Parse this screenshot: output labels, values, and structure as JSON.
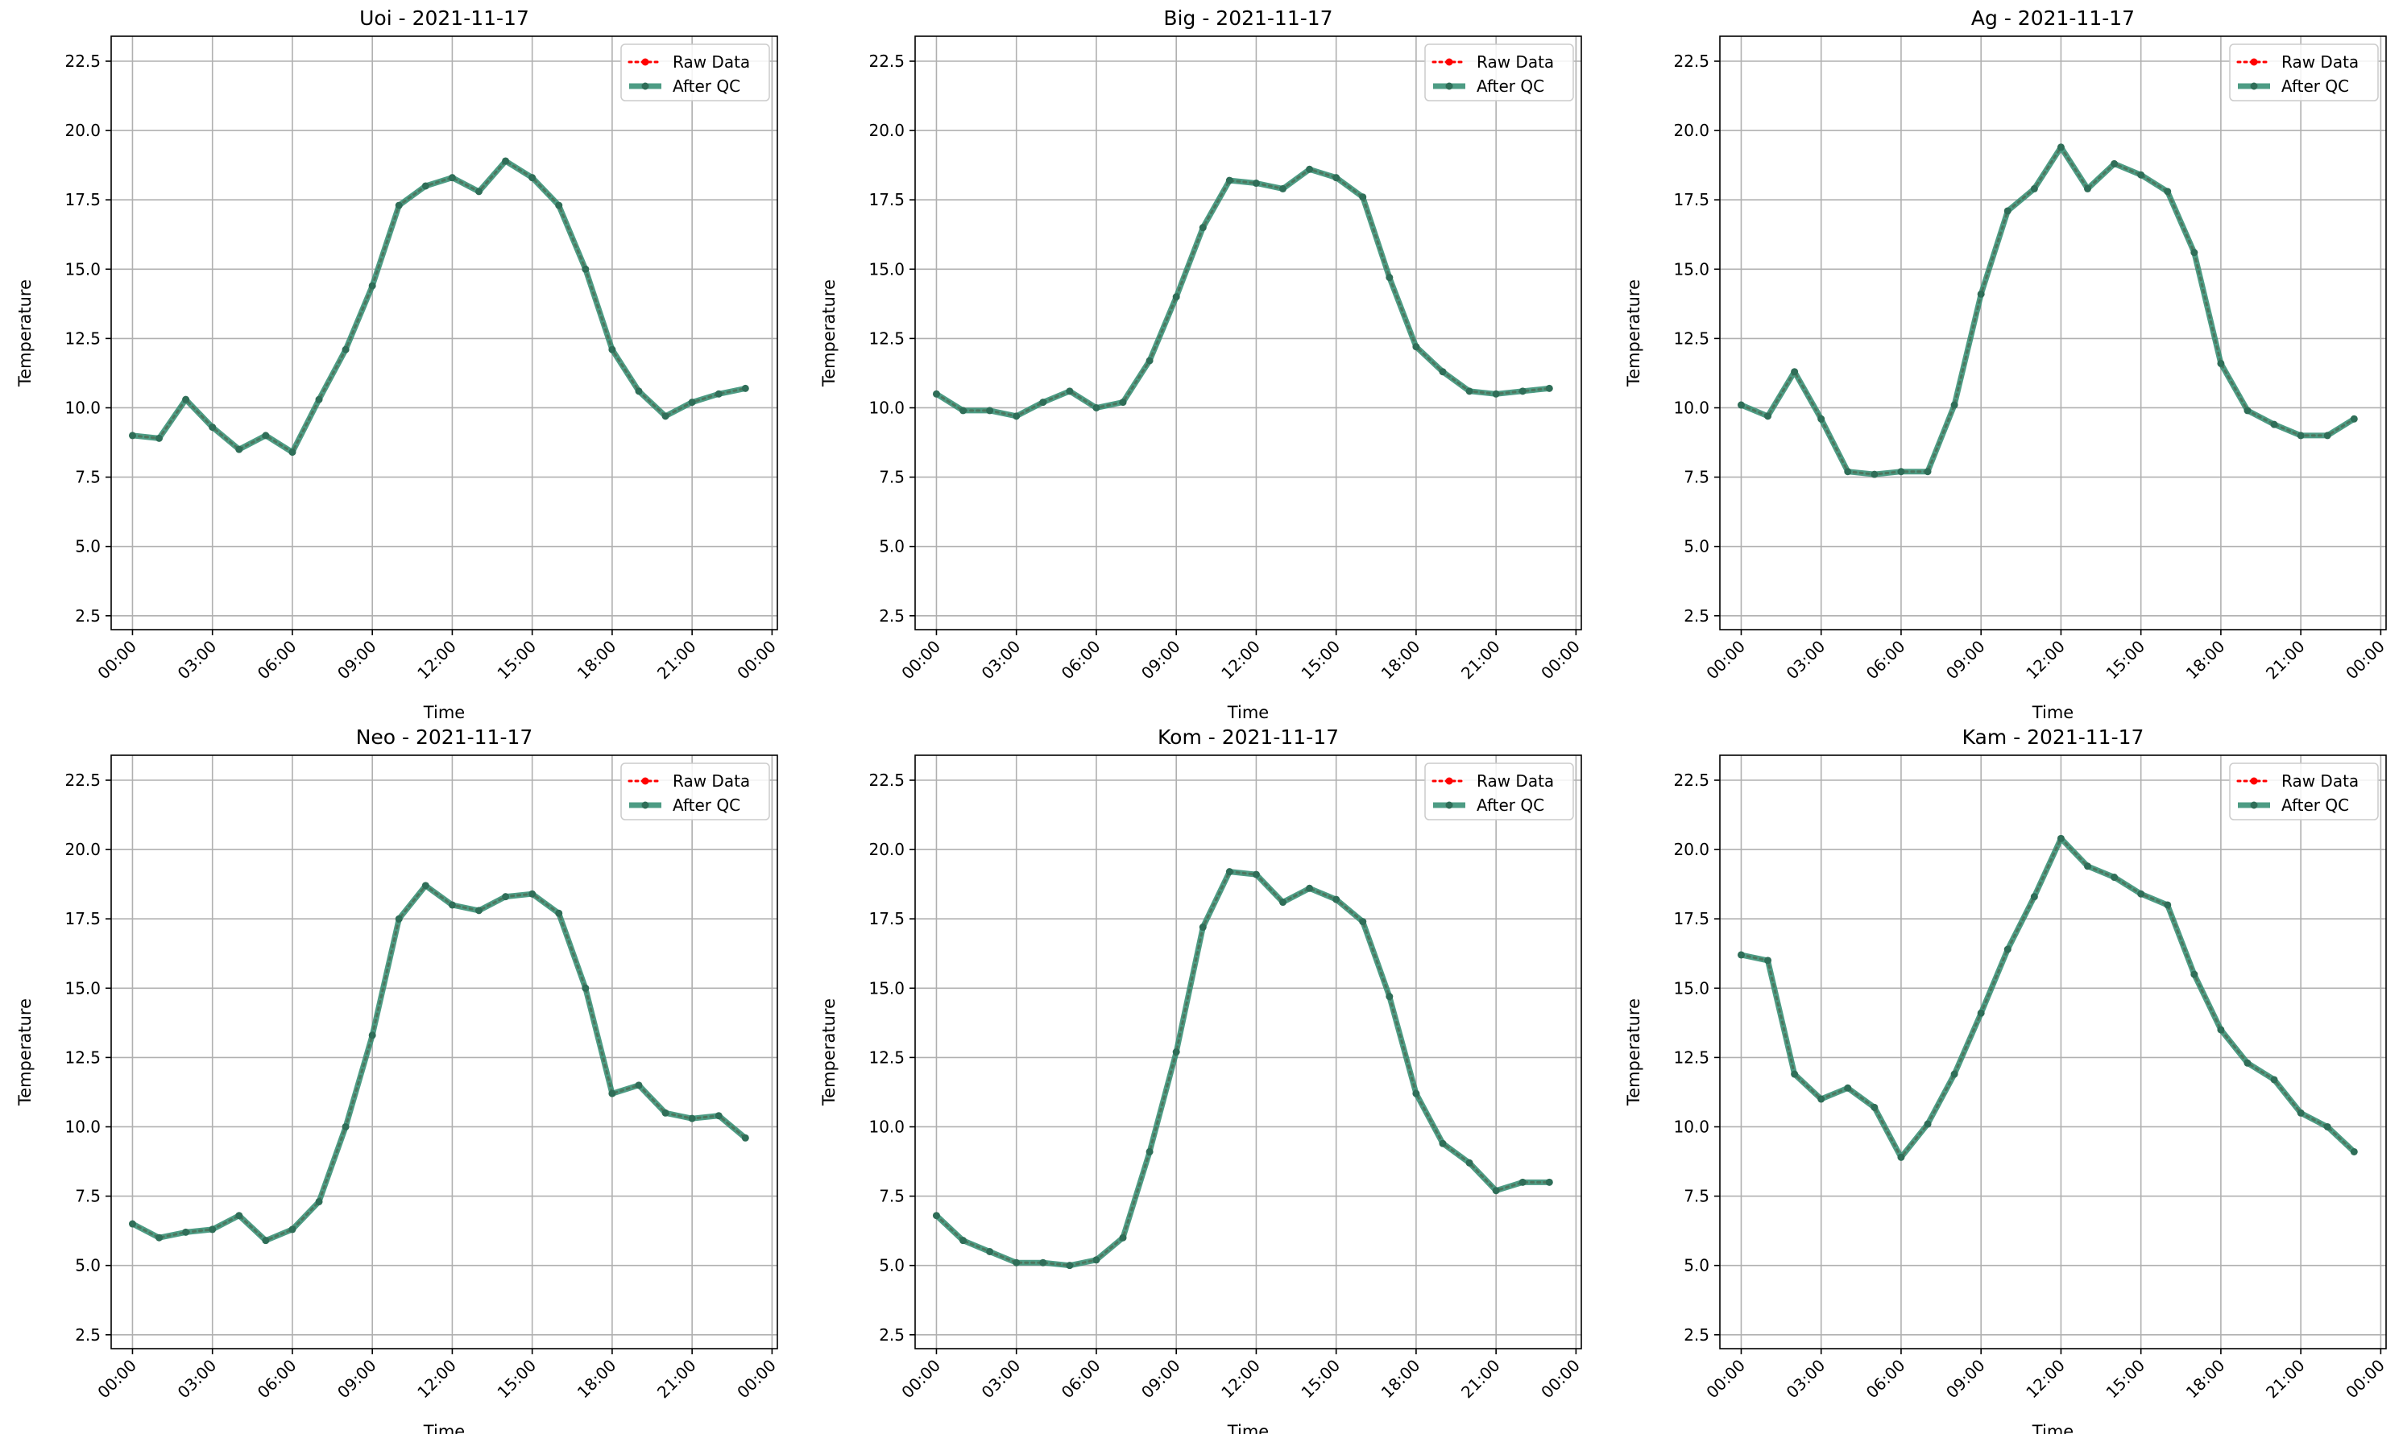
{
  "chart_data": [
    {
      "type": "line",
      "title": "Uoi - 2021-11-17",
      "xlabel": "Time",
      "ylabel": "Temperature",
      "ylim": [
        2.0,
        23.4
      ],
      "xlim": [
        -0.8,
        24.2
      ],
      "yticks": [
        2.5,
        5.0,
        7.5,
        10.0,
        12.5,
        15.0,
        17.5,
        20.0,
        22.5
      ],
      "xticks": [
        "00:00",
        "03:00",
        "06:00",
        "09:00",
        "12:00",
        "15:00",
        "18:00",
        "21:00",
        "00:00"
      ],
      "grid": true,
      "legend": "top-right",
      "x": [
        0,
        1,
        2,
        3,
        4,
        5,
        6,
        7,
        8,
        9,
        10,
        11,
        12,
        13,
        14,
        15,
        16,
        17,
        18,
        19,
        20,
        21,
        22,
        23
      ],
      "series": [
        {
          "name": "Raw Data",
          "color": "#ff0000",
          "values": [
            9.0,
            8.9,
            10.3,
            9.3,
            8.5,
            9.0,
            8.4,
            10.3,
            12.1,
            14.4,
            17.3,
            18.0,
            18.3,
            17.8,
            18.9,
            18.3,
            17.3,
            15.0,
            12.1,
            10.6,
            9.7,
            10.2,
            10.5,
            10.7
          ]
        },
        {
          "name": "After QC",
          "color": "#2e8b6e",
          "values": [
            9.0,
            8.9,
            10.3,
            9.3,
            8.5,
            9.0,
            8.4,
            10.3,
            12.1,
            14.4,
            17.3,
            18.0,
            18.3,
            17.8,
            18.9,
            18.3,
            17.3,
            15.0,
            12.1,
            10.6,
            9.7,
            10.2,
            10.5,
            10.7
          ]
        }
      ]
    },
    {
      "type": "line",
      "title": "Big - 2021-11-17",
      "xlabel": "Time",
      "ylabel": "Temperature",
      "ylim": [
        2.0,
        23.4
      ],
      "xlim": [
        -0.8,
        24.2
      ],
      "yticks": [
        2.5,
        5.0,
        7.5,
        10.0,
        12.5,
        15.0,
        17.5,
        20.0,
        22.5
      ],
      "xticks": [
        "00:00",
        "03:00",
        "06:00",
        "09:00",
        "12:00",
        "15:00",
        "18:00",
        "21:00",
        "00:00"
      ],
      "grid": true,
      "legend": "top-right",
      "x": [
        0,
        1,
        2,
        3,
        4,
        5,
        6,
        7,
        8,
        9,
        10,
        11,
        12,
        13,
        14,
        15,
        16,
        17,
        18,
        19,
        20,
        21,
        22,
        23
      ],
      "series": [
        {
          "name": "Raw Data",
          "color": "#ff0000",
          "values": [
            10.5,
            9.9,
            9.9,
            9.7,
            10.2,
            10.6,
            10.0,
            10.2,
            11.7,
            14.0,
            16.5,
            18.2,
            18.1,
            17.9,
            18.6,
            18.3,
            17.6,
            14.7,
            12.2,
            11.3,
            10.6,
            10.5,
            10.6,
            10.7
          ]
        },
        {
          "name": "After QC",
          "color": "#2e8b6e",
          "values": [
            10.5,
            9.9,
            9.9,
            9.7,
            10.2,
            10.6,
            10.0,
            10.2,
            11.7,
            14.0,
            16.5,
            18.2,
            18.1,
            17.9,
            18.6,
            18.3,
            17.6,
            14.7,
            12.2,
            11.3,
            10.6,
            10.5,
            10.6,
            10.7
          ]
        }
      ]
    },
    {
      "type": "line",
      "title": "Ag - 2021-11-17",
      "xlabel": "Time",
      "ylabel": "Temperature",
      "ylim": [
        2.0,
        23.4
      ],
      "xlim": [
        -0.8,
        24.2
      ],
      "yticks": [
        2.5,
        5.0,
        7.5,
        10.0,
        12.5,
        15.0,
        17.5,
        20.0,
        22.5
      ],
      "xticks": [
        "00:00",
        "03:00",
        "06:00",
        "09:00",
        "12:00",
        "15:00",
        "18:00",
        "21:00",
        "00:00"
      ],
      "grid": true,
      "legend": "top-right",
      "x": [
        0,
        1,
        2,
        3,
        4,
        5,
        6,
        7,
        8,
        9,
        10,
        11,
        12,
        13,
        14,
        15,
        16,
        17,
        18,
        19,
        20,
        21,
        22,
        23
      ],
      "series": [
        {
          "name": "Raw Data",
          "color": "#ff0000",
          "values": [
            10.1,
            9.7,
            11.3,
            9.6,
            7.7,
            7.6,
            7.7,
            7.7,
            10.1,
            14.1,
            17.1,
            17.9,
            19.4,
            17.9,
            18.8,
            18.4,
            17.8,
            15.6,
            11.6,
            9.9,
            9.4,
            9.0,
            9.0,
            9.6
          ]
        },
        {
          "name": "After QC",
          "color": "#2e8b6e",
          "values": [
            10.1,
            9.7,
            11.3,
            9.6,
            7.7,
            7.6,
            7.7,
            7.7,
            10.1,
            14.1,
            17.1,
            17.9,
            19.4,
            17.9,
            18.8,
            18.4,
            17.8,
            15.6,
            11.6,
            9.9,
            9.4,
            9.0,
            9.0,
            9.6
          ]
        }
      ]
    },
    {
      "type": "line",
      "title": "Neo - 2021-11-17",
      "xlabel": "Time",
      "ylabel": "Temperature",
      "ylim": [
        2.0,
        23.4
      ],
      "xlim": [
        -0.8,
        24.2
      ],
      "yticks": [
        2.5,
        5.0,
        7.5,
        10.0,
        12.5,
        15.0,
        17.5,
        20.0,
        22.5
      ],
      "xticks": [
        "00:00",
        "03:00",
        "06:00",
        "09:00",
        "12:00",
        "15:00",
        "18:00",
        "21:00",
        "00:00"
      ],
      "grid": true,
      "legend": "top-right",
      "x": [
        0,
        1,
        2,
        3,
        4,
        5,
        6,
        7,
        8,
        9,
        10,
        11,
        12,
        13,
        14,
        15,
        16,
        17,
        18,
        19,
        20,
        21,
        22,
        23
      ],
      "series": [
        {
          "name": "Raw Data",
          "color": "#ff0000",
          "values": [
            6.5,
            6.0,
            6.2,
            6.3,
            6.8,
            5.9,
            6.3,
            7.3,
            10.0,
            13.3,
            17.5,
            18.7,
            18.0,
            17.8,
            18.3,
            18.4,
            17.7,
            15.0,
            11.2,
            11.5,
            10.5,
            10.3,
            10.4,
            9.6
          ]
        },
        {
          "name": "After QC",
          "color": "#2e8b6e",
          "values": [
            6.5,
            6.0,
            6.2,
            6.3,
            6.8,
            5.9,
            6.3,
            7.3,
            10.0,
            13.3,
            17.5,
            18.7,
            18.0,
            17.8,
            18.3,
            18.4,
            17.7,
            15.0,
            11.2,
            11.5,
            10.5,
            10.3,
            10.4,
            9.6
          ]
        }
      ]
    },
    {
      "type": "line",
      "title": "Kom - 2021-11-17",
      "xlabel": "Time",
      "ylabel": "Temperature",
      "ylim": [
        2.0,
        23.4
      ],
      "xlim": [
        -0.8,
        24.2
      ],
      "yticks": [
        2.5,
        5.0,
        7.5,
        10.0,
        12.5,
        15.0,
        17.5,
        20.0,
        22.5
      ],
      "xticks": [
        "00:00",
        "03:00",
        "06:00",
        "09:00",
        "12:00",
        "15:00",
        "18:00",
        "21:00",
        "00:00"
      ],
      "grid": true,
      "legend": "top-right",
      "x": [
        0,
        1,
        2,
        3,
        4,
        5,
        6,
        7,
        8,
        9,
        10,
        11,
        12,
        13,
        14,
        15,
        16,
        17,
        18,
        19,
        20,
        21,
        22,
        23
      ],
      "series": [
        {
          "name": "Raw Data",
          "color": "#ff0000",
          "values": [
            6.8,
            5.9,
            5.5,
            5.1,
            5.1,
            5.0,
            5.2,
            6.0,
            9.1,
            12.7,
            17.2,
            19.2,
            19.1,
            18.1,
            18.6,
            18.2,
            17.4,
            14.7,
            11.2,
            9.4,
            8.7,
            7.7,
            8.0,
            8.0
          ]
        },
        {
          "name": "After QC",
          "color": "#2e8b6e",
          "values": [
            6.8,
            5.9,
            5.5,
            5.1,
            5.1,
            5.0,
            5.2,
            6.0,
            9.1,
            12.7,
            17.2,
            19.2,
            19.1,
            18.1,
            18.6,
            18.2,
            17.4,
            14.7,
            11.2,
            9.4,
            8.7,
            7.7,
            8.0,
            8.0
          ]
        }
      ]
    },
    {
      "type": "line",
      "title": "Kam - 2021-11-17",
      "xlabel": "Time",
      "ylabel": "Temperature",
      "ylim": [
        2.0,
        23.4
      ],
      "xlim": [
        -0.8,
        24.2
      ],
      "yticks": [
        2.5,
        5.0,
        7.5,
        10.0,
        12.5,
        15.0,
        17.5,
        20.0,
        22.5
      ],
      "xticks": [
        "00:00",
        "03:00",
        "06:00",
        "09:00",
        "12:00",
        "15:00",
        "18:00",
        "21:00",
        "00:00"
      ],
      "grid": true,
      "legend": "top-right",
      "x": [
        0,
        1,
        2,
        3,
        4,
        5,
        6,
        7,
        8,
        9,
        10,
        11,
        12,
        13,
        14,
        15,
        16,
        17,
        18,
        19,
        20,
        21,
        22,
        23
      ],
      "series": [
        {
          "name": "Raw Data",
          "color": "#ff0000",
          "values": [
            16.2,
            16.0,
            11.9,
            11.0,
            11.4,
            10.7,
            8.9,
            10.1,
            11.9,
            14.1,
            16.4,
            18.3,
            20.4,
            19.4,
            19.0,
            18.4,
            18.0,
            15.5,
            13.5,
            12.3,
            11.7,
            10.5,
            10.0,
            9.1
          ]
        },
        {
          "name": "After QC",
          "color": "#2e8b6e",
          "values": [
            16.2,
            16.0,
            11.9,
            11.0,
            11.4,
            10.7,
            8.9,
            10.1,
            11.9,
            14.1,
            16.4,
            18.3,
            20.4,
            19.4,
            19.0,
            18.4,
            18.0,
            15.5,
            13.5,
            12.3,
            11.7,
            10.5,
            10.0,
            9.1
          ]
        }
      ]
    }
  ]
}
